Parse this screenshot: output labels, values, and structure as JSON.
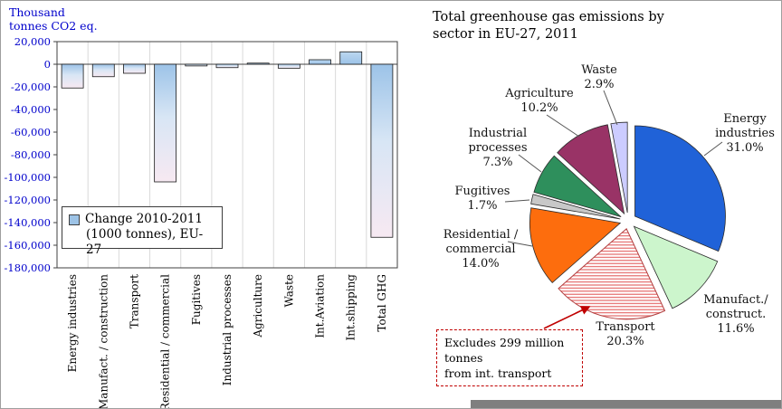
{
  "bar_chart": {
    "axis_title_lines": [
      "Thousand",
      "tonnes CO2 eq."
    ],
    "legend_lines": [
      "Change 2010-2011",
      "(1000 tonnes), EU-27"
    ],
    "colors": {
      "axis_text": "#0000cc",
      "bar_fill_top": "#9cc3e8",
      "bar_fill_bottom": "#f7e9f2",
      "bar_border": "#1a1a1a",
      "legend_swatch": "#9dc3e6"
    }
  },
  "pie_chart": {
    "title_lines": [
      "Total greenhouse gas emissions by",
      "sector in EU-27, 2011"
    ],
    "annotation_lines": [
      "Excludes 299 million tonnes",
      "from int. transport"
    ],
    "annotation_border_color": "#c00000"
  },
  "chart_data": [
    {
      "type": "bar",
      "title": "Change 2010-2011 (1000 tonnes), EU-27",
      "ylabel": "Thousand tonnes CO2 eq.",
      "ylim": [
        -180000,
        20000
      ],
      "ytick_step": 20000,
      "grid": "vertical category gridlines",
      "legend": [
        "Change 2010-2011 (1000 tonnes), EU-27"
      ],
      "categories": [
        "Energy industries",
        "Manufact. / construction",
        "Transport",
        "Residential / commercial",
        "Fugitives",
        "Industrial processes",
        "Agriculture",
        "Waste",
        "Int.Aviation",
        "Int.shipping",
        "Total GHG"
      ],
      "values": [
        -21000,
        -11000,
        -8000,
        -104000,
        -1500,
        -3000,
        1000,
        -3500,
        4000,
        11000,
        -153000
      ]
    },
    {
      "type": "pie",
      "title": "Total greenhouse gas emissions by sector in EU-27, 2011",
      "annotation": "Excludes 299 million tonnes from int. transport",
      "slices": [
        {
          "label": "Energy industries",
          "pct": 31.0,
          "color": "#2062d8",
          "label_lines": [
            "Energy",
            "industries",
            "31.0%"
          ]
        },
        {
          "label": "Manufact./construct.",
          "pct": 11.6,
          "color": "#ccf5cc",
          "label_lines": [
            "Manufact./",
            "construct.",
            "11.6%"
          ]
        },
        {
          "label": "Transport",
          "pct": 20.3,
          "color": "#ffffff",
          "hatch": true,
          "hatch_color": "#e25c5c",
          "label_lines": [
            "Transport",
            "20.3%"
          ]
        },
        {
          "label": "Residential / commercial",
          "pct": 14.0,
          "color": "#fd6d0d",
          "label_lines": [
            "Residential /",
            "commercial",
            "14.0%"
          ]
        },
        {
          "label": "Fugitives",
          "pct": 1.7,
          "color": "#c8c8c8",
          "label_lines": [
            "Fugitives",
            "1.7%"
          ]
        },
        {
          "label": "Industrial processes",
          "pct": 7.3,
          "color": "#2e8f5c",
          "label_lines": [
            "Industrial",
            "processes",
            "7.3%"
          ]
        },
        {
          "label": "Agriculture",
          "pct": 10.2,
          "color": "#993366",
          "label_lines": [
            "Agriculture",
            "10.2%"
          ]
        },
        {
          "label": "Waste",
          "pct": 2.9,
          "color": "#ccccff",
          "label_lines": [
            "Waste",
            "2.9%"
          ]
        }
      ]
    }
  ]
}
